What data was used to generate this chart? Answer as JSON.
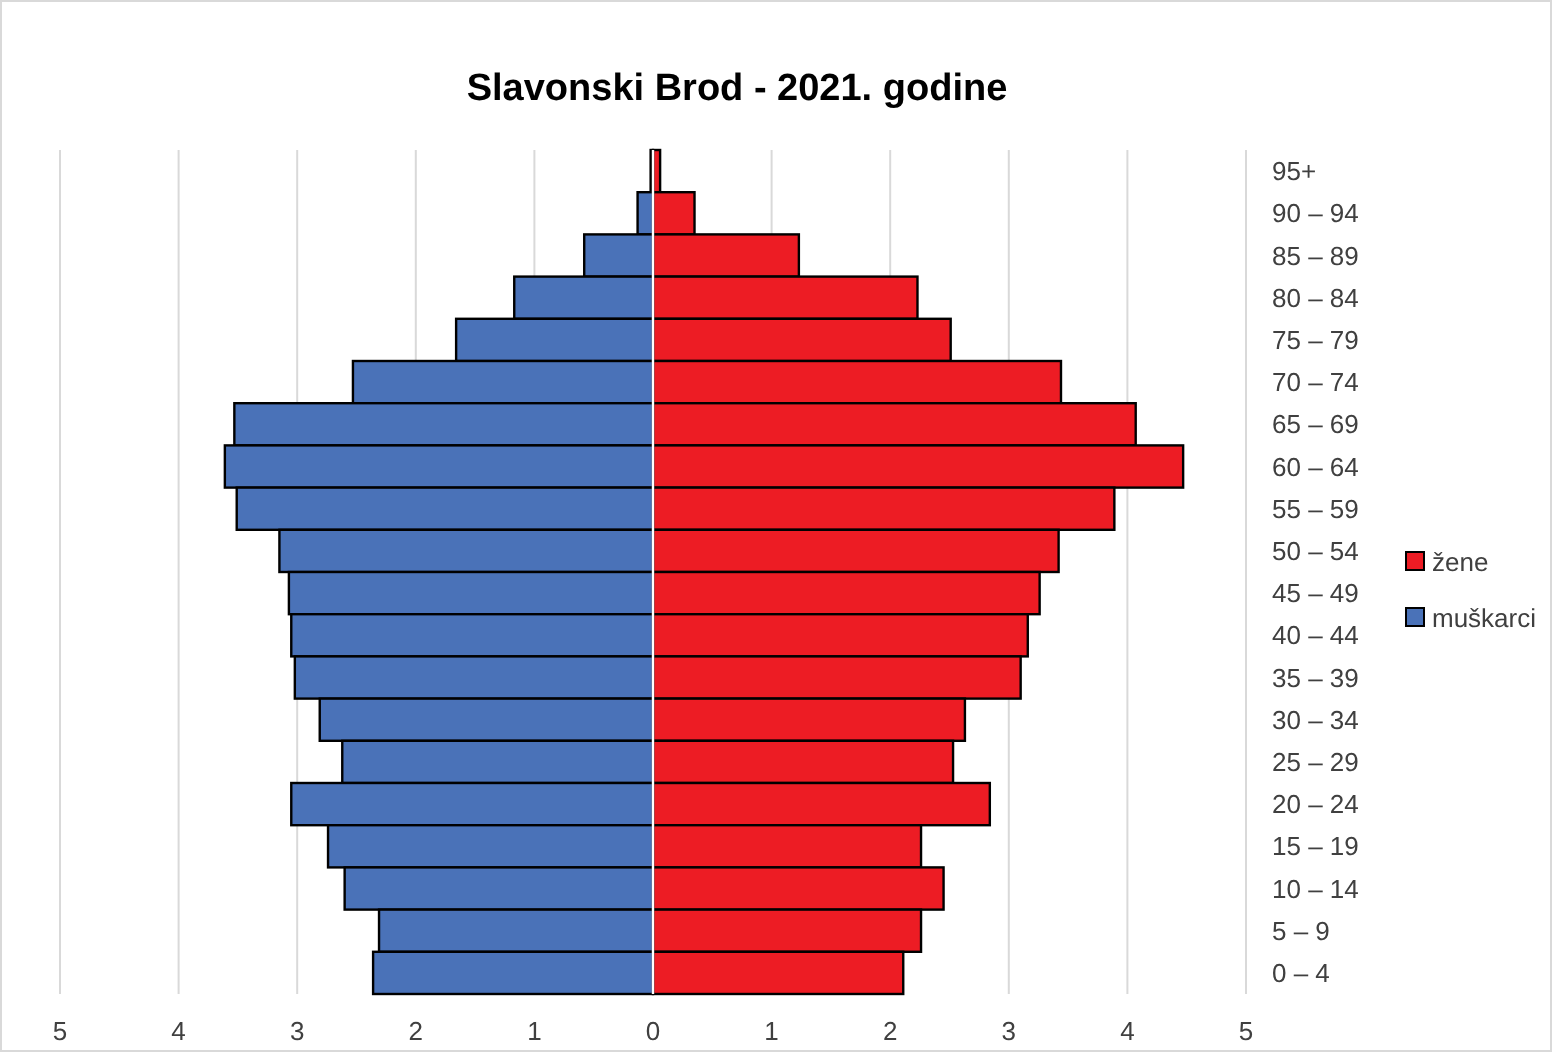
{
  "chart_data": {
    "type": "bar",
    "orientation": "horizontal",
    "title": "Slavonski Brod - 2021. godine",
    "categories": [
      "95+",
      "90 – 94",
      "85 – 89",
      "80 – 84",
      "75 – 79",
      "70 – 74",
      "65 – 69",
      "60 – 64",
      "55 – 59",
      "50 – 54",
      "45 – 49",
      "40 – 44",
      "35 – 39",
      "30 – 34",
      "25 – 29",
      "20 – 24",
      "15 – 19",
      "10 – 14",
      "5 – 9",
      "0 – 4"
    ],
    "series": [
      {
        "name": "žene",
        "color": "#ed1c24",
        "values": [
          0.06,
          0.35,
          1.23,
          2.23,
          2.51,
          3.44,
          4.07,
          4.47,
          3.89,
          3.42,
          3.26,
          3.16,
          3.1,
          2.63,
          2.53,
          2.84,
          2.26,
          2.45,
          2.26,
          2.11
        ]
      },
      {
        "name": "muškarci",
        "color": "#4a72b8",
        "values": [
          -0.02,
          -0.13,
          -0.58,
          -1.17,
          -1.66,
          -2.53,
          -3.53,
          -3.61,
          -3.51,
          -3.15,
          -3.07,
          -3.05,
          -3.02,
          -2.81,
          -2.62,
          -3.05,
          -2.74,
          -2.6,
          -2.31,
          -2.36
        ]
      }
    ],
    "xlim": [
      -5,
      5
    ],
    "xticks": [
      {
        "value": -5,
        "label": "5"
      },
      {
        "value": -4,
        "label": "4"
      },
      {
        "value": -3,
        "label": "3"
      },
      {
        "value": -2,
        "label": "2"
      },
      {
        "value": -1,
        "label": "1"
      },
      0,
      1,
      2,
      3,
      4,
      5
    ],
    "grid": "x",
    "legend": "right",
    "stacked": true
  }
}
